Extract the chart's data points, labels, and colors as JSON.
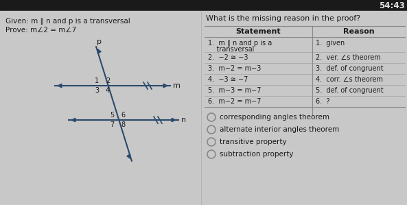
{
  "bg_color": "#c8c8c8",
  "header_color": "#1a1a1a",
  "timer_text": "54:43",
  "given_text": "Given: m ∥ n and p is a transversal",
  "prove_text": "Prove: m∠2 = m∠7",
  "question_text": "What is the missing reason in the proof?",
  "table_header": [
    "Statement",
    "Reason"
  ],
  "stmt_rows": [
    "1.  m ∥ n and p is a\n    transversal",
    "2.  −2 ≅ −3",
    "3.  m−2 = m−3",
    "4.  −3 ≅ −7",
    "5.  m−3 = m−7",
    "6.  m−2 = m−7"
  ],
  "rsn_rows": [
    "1.  given",
    "2.  ver. ∠s theorem",
    "3.  def. of congruent",
    "4.  corr. ∠s theorem",
    "5.  def. of congruent",
    "6.  ?"
  ],
  "choices": [
    "corresponding angles theorem",
    "alternate interior angles theorem",
    "transitive property",
    "subtraction property"
  ],
  "text_color": "#1a1a1a",
  "table_line_color": "#888888",
  "circle_color": "#888888",
  "header_text_color": "#e0e0e0",
  "diagram_color": "#2a4a6a",
  "arrow_head_color": "#1a3a5a"
}
